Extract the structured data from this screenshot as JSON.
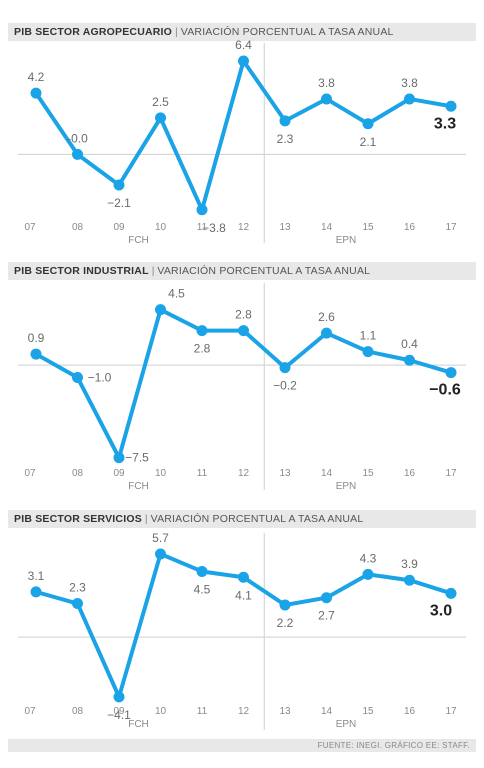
{
  "chart_data": [
    {
      "type": "line",
      "title": "PIB SECTOR AGROPECUARIO",
      "subtitle": "VARIACIÓN PORCENTUAL A TASA ANUAL",
      "categories": [
        "07",
        "08",
        "09",
        "10",
        "11",
        "12",
        "13",
        "14",
        "15",
        "16",
        "17"
      ],
      "values": [
        4.2,
        -0.0,
        -2.1,
        2.5,
        -3.8,
        6.4,
        2.3,
        3.8,
        2.1,
        3.8,
        3.3
      ],
      "labels": [
        "4.2",
        "-0.0",
        "−2.1",
        "2.5",
        "−3.8",
        "6.4",
        "2.3",
        "3.8",
        "2.1",
        "3.8",
        "3.3"
      ],
      "periods": [
        {
          "name": "FCH",
          "at": "10"
        },
        {
          "name": "EPN",
          "at": "15"
        }
      ],
      "ylim": [
        -4.5,
        7.5
      ],
      "highlight_last": true
    },
    {
      "type": "line",
      "title": "PIB SECTOR INDUSTRIAL",
      "subtitle": "VARIACIÓN PORCENTUAL A TASA ANUAL",
      "categories": [
        "07",
        "08",
        "09",
        "10",
        "11",
        "12",
        "13",
        "14",
        "15",
        "16",
        "17"
      ],
      "values": [
        0.9,
        -1.0,
        -7.5,
        4.5,
        2.8,
        2.8,
        -0.2,
        2.6,
        1.1,
        0.4,
        -0.6
      ],
      "labels": [
        "0.9",
        "−1.0",
        "−7.5",
        "4.5",
        "2.8",
        "2.8",
        "−0.2",
        "2.6",
        "1.1",
        "0.4",
        "−0.6"
      ],
      "periods": [
        {
          "name": "FCH",
          "at": "10"
        },
        {
          "name": "EPN",
          "at": "15"
        }
      ],
      "ylim": [
        -8.5,
        6.5
      ],
      "highlight_last": true
    },
    {
      "type": "line",
      "title": "PIB SECTOR SERVICIOS",
      "subtitle": "VARIACIÓN PORCENTUAL A TASA ANUAL",
      "categories": [
        "07",
        "08",
        "09",
        "10",
        "11",
        "12",
        "13",
        "14",
        "15",
        "16",
        "17"
      ],
      "values": [
        3.1,
        2.3,
        -4.1,
        5.7,
        4.5,
        4.1,
        2.2,
        2.7,
        4.3,
        3.9,
        3.0
      ],
      "labels": [
        "3.1",
        "2.3",
        "−4.1",
        "5.7",
        "4.5",
        "4.1",
        "2.2",
        "2.7",
        "4.3",
        "3.9",
        "3.0"
      ],
      "periods": [
        {
          "name": "FCH",
          "at": "10"
        },
        {
          "name": "EPN",
          "at": "15"
        }
      ],
      "ylim": [
        -5,
        7
      ],
      "highlight_last": true
    }
  ],
  "source": "FUENTE: INEGI. GRÁFICO EE: STAFF.",
  "colors": {
    "line": "#1aa3e6",
    "grid": "#cfcfcf",
    "header_bg": "#e8e8e8",
    "text": "#6b6b6b",
    "highlight": "#222222"
  }
}
